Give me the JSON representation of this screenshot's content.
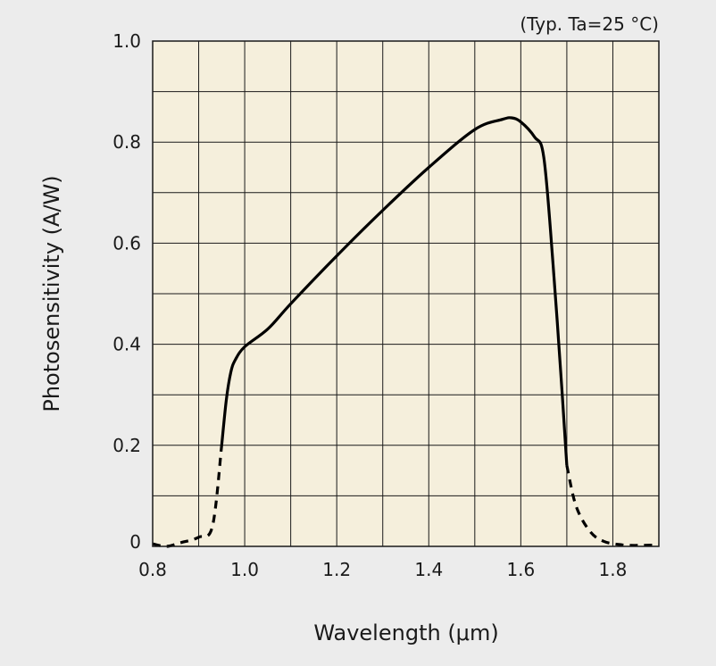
{
  "chart_data": {
    "type": "line",
    "title": "",
    "annotation": "(Typ. Ta=25 °C)",
    "xlabel": "Wavelength (μm)",
    "ylabel": "Photosensitivity (A/W)",
    "xlim": [
      0.8,
      1.9
    ],
    "ylim": [
      0,
      1.0
    ],
    "x_tick_labels": [
      "0.8",
      "1.0",
      "1.2",
      "1.4",
      "1.6",
      "1.8"
    ],
    "y_tick_labels": [
      "0",
      "0.2",
      "0.4",
      "0.6",
      "0.8",
      "1.0"
    ],
    "grid": true,
    "colors": {
      "plot_bg": "#f5efdc",
      "grid": "#1a1a1a",
      "line": "#000000",
      "page_bg": "#ececec"
    },
    "series": [
      {
        "style": "dashed",
        "x": [
          0.8,
          0.83,
          0.86,
          0.9,
          0.93,
          0.95
        ],
        "y": [
          0.005,
          0.0,
          0.007,
          0.018,
          0.04,
          0.2
        ]
      },
      {
        "style": "solid",
        "x": [
          0.95,
          0.96,
          0.97,
          0.98,
          1.0,
          1.05,
          1.1,
          1.2,
          1.3,
          1.4,
          1.5,
          1.56,
          1.58,
          1.6,
          1.63,
          1.65,
          1.67,
          1.69,
          1.7
        ],
        "y": [
          0.2,
          0.29,
          0.345,
          0.37,
          0.395,
          0.43,
          0.48,
          0.575,
          0.665,
          0.75,
          0.825,
          0.845,
          0.848,
          0.84,
          0.81,
          0.77,
          0.56,
          0.3,
          0.16
        ]
      },
      {
        "style": "dashed",
        "x": [
          1.7,
          1.72,
          1.75,
          1.78,
          1.82,
          1.86,
          1.9
        ],
        "y": [
          0.16,
          0.08,
          0.03,
          0.01,
          0.003,
          0.002,
          0.003
        ]
      }
    ]
  }
}
